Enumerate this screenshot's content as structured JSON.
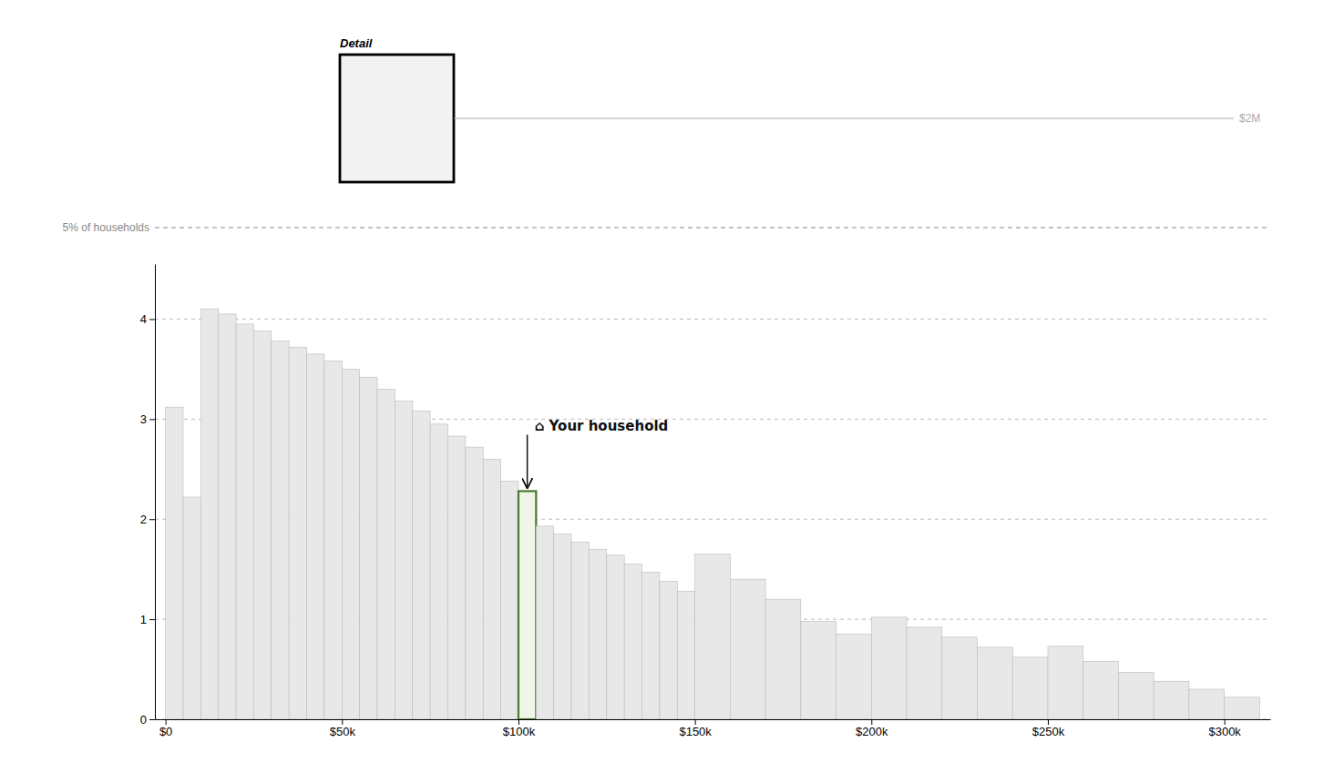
{
  "chart_data": {
    "type": "histogram",
    "bins": [
      0,
      5000,
      10000,
      15000,
      20000,
      25000,
      30000,
      35000,
      40000,
      45000,
      50000,
      55000,
      60000,
      65000,
      70000,
      75000,
      80000,
      85000,
      90000,
      95000,
      100000,
      105000,
      110000,
      115000,
      120000,
      125000,
      130000,
      135000,
      140000,
      145000,
      150000,
      160000,
      170000,
      180000,
      190000,
      200000,
      210000,
      220000,
      230000,
      240000,
      250000,
      260000,
      270000,
      280000,
      290000,
      300000,
      310000
    ],
    "values": [
      3.12,
      2.22,
      4.1,
      4.05,
      3.95,
      3.88,
      3.78,
      3.72,
      3.65,
      3.58,
      3.5,
      3.42,
      3.3,
      3.18,
      3.08,
      2.95,
      2.83,
      2.72,
      2.6,
      2.38,
      2.28,
      1.93,
      1.85,
      1.77,
      1.7,
      1.64,
      1.55,
      1.47,
      1.38,
      1.28,
      1.65,
      1.4,
      1.2,
      0.98,
      0.85,
      1.02,
      0.92,
      0.82,
      0.72,
      0.62,
      0.73,
      0.58,
      0.47,
      0.38,
      0.3,
      0.22
    ],
    "colors": [
      "#e8e8e8",
      "#e8e8e8",
      "#e8e8e8",
      "#e8e8e8",
      "#e8e8e8",
      "#e8e8e8",
      "#e8e8e8",
      "#e8e8e8",
      "#e8e8e8",
      "#e8e8e8",
      "#e8e8e8",
      "#e8e8e8",
      "#e8e8e8",
      "#e8e8e8",
      "#e8e8e8",
      "#e8e8e8",
      "#e8e8e8",
      "#e8e8e8",
      "#e8e8e8",
      "#e8e8e8",
      "#f0f5e8",
      "#e8e8e8",
      "#e8e8e8",
      "#e8e8e8",
      "#e8e8e8",
      "#e8e8e8",
      "#e8e8e8",
      "#e8e8e8",
      "#e8e8e8",
      "#e8e8e8",
      "#e8e8e8",
      "#e8e8e8",
      "#e8e8e8",
      "#e8e8e8",
      "#e8e8e8",
      "#e8e8e8",
      "#e8e8e8",
      "#e8e8e8",
      "#e8e8e8",
      "#e8e8e8",
      "#e8e8e8",
      "#e8e8e8",
      "#e8e8e8",
      "#e8e8e8",
      "#e8e8e8",
      "#e8e8e8"
    ],
    "xlim": [
      -3000,
      313000
    ],
    "xticks": [
      {
        "value": 0,
        "label": "$0"
      },
      {
        "value": 50000,
        "label": "$50k"
      },
      {
        "value": 100000,
        "label": "$100k"
      },
      {
        "value": 150000,
        "label": "$150k"
      },
      {
        "value": 200000,
        "label": "$200k"
      },
      {
        "value": 250000,
        "label": "$250k"
      },
      {
        "value": 300000,
        "label": "$300k"
      }
    ],
    "ylim": [
      0,
      4.55
    ],
    "yticks": [
      0,
      1,
      2,
      3,
      4
    ],
    "grid": true,
    "annotations": [
      "⌂ Your household",
      "5% of households",
      "Detail",
      "$2M"
    ]
  }
}
